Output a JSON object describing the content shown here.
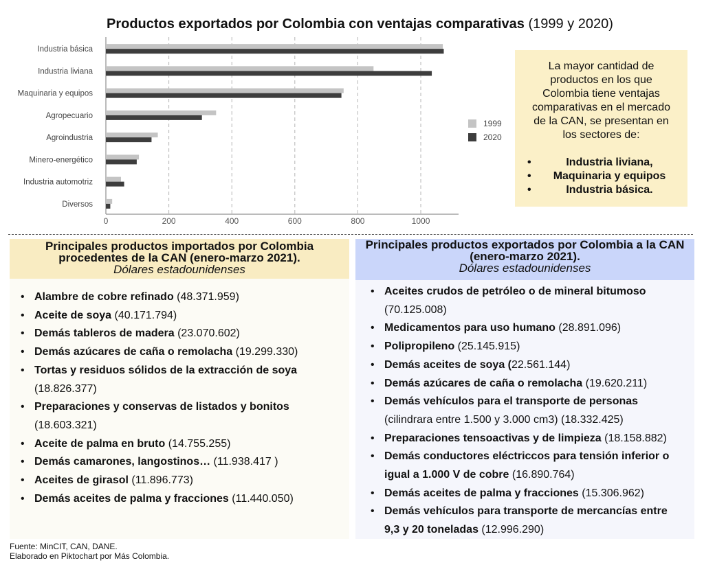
{
  "chart_data": {
    "type": "bar",
    "orientation": "horizontal",
    "title_bold": "Productos exportados por Colombia con ventajas comparativas",
    "title_rest": " (1999 y 2020)",
    "categories": [
      "Industria básica",
      "Industria liviana",
      "Maquinaria y equipos",
      "Agropecuario",
      "Agroindustria",
      "Minero-energético",
      "Industria automotriz",
      "Diversos"
    ],
    "series": [
      {
        "name": "1999",
        "color": "#c4c4c4",
        "values": [
          1070,
          850,
          755,
          350,
          165,
          105,
          48,
          20
        ]
      },
      {
        "name": "2020",
        "color": "#3d3d3d",
        "values": [
          1073,
          1035,
          748,
          305,
          145,
          98,
          58,
          14
        ]
      }
    ],
    "xticks": [
      "0",
      "200",
      "400",
      "600",
      "800",
      "1000"
    ],
    "xlim": [
      0,
      1120
    ],
    "grid": "vertical dashed",
    "legend_position": "right"
  },
  "callout": {
    "intro": "La mayor cantidad de productos en los que Colombia tiene ventajas comparativas en el mercado de la CAN, se presentan en los sectores de:",
    "items": [
      "Industria liviana,",
      "Maquinaria y equipos",
      "Industria básica."
    ]
  },
  "imports": {
    "title": "Principales productos importados por Colombia procedentes de la CAN (enero-marzo 2021).",
    "subtitle": "Dólares estadounidenses",
    "items": [
      {
        "name": "Alambre de cobre refinado",
        "value": " (48.371.959)"
      },
      {
        "name": "Aceite de soya",
        "value": " (40.171.794)"
      },
      {
        "name": "Demás tableros de madera",
        "value": " (23.070.602)"
      },
      {
        "name": "Demás azúcares de caña o remolacha",
        "value": " (19.299.330)"
      },
      {
        "name": "Tortas y residuos sólidos de la extracción de soya",
        "value": " (18.826.377)"
      },
      {
        "name": "Preparaciones y conservas de listados y bonitos",
        "value": " (18.603.321)"
      },
      {
        "name": "Aceite de palma en bruto",
        "value": " (14.755.255)"
      },
      {
        "name": "Demás camarones, langostinos…",
        "value": " (11.938.417 )"
      },
      {
        "name": "Aceites de girasol",
        "value": " (11.896.773)"
      },
      {
        "name": "Demás aceites de palma y fracciones",
        "value": " (11.440.050)"
      }
    ]
  },
  "exports": {
    "title": "Principales productos exportados por Colombia a la CAN (enero-marzo 2021).",
    "subtitle": "Dólares estadounidenses",
    "items": [
      {
        "name": "Aceites crudos de petróleo o de mineral bitumoso",
        "value": " (70.125.008)"
      },
      {
        "name": "Medicamentos para uso humano",
        "value": " (28.891.096)"
      },
      {
        "name": "Polipropileno",
        "value": " (25.145.915)"
      },
      {
        "name": "Demás aceites de soya (",
        "value": "22.561.144)"
      },
      {
        "name": "Demás azúcares de caña o remolacha",
        "value": " (19.620.211)"
      },
      {
        "name": "Demás vehículos para el transporte de personas",
        "value": " (cilindrara entre 1.500 y 3.000 cm3) (18.332.425)"
      },
      {
        "name": "Preparaciones tensoactivas y de limpieza",
        "value": " (18.158.882)"
      },
      {
        "name": "Demás conductores eléctriccos para tensión inferior o igual a 1.000 V de cobre",
        "value": " (16.890.764)"
      },
      {
        "name": "Demás aceites de palma y fracciones",
        "value": " (15.306.962)"
      },
      {
        "name": "Demás vehículos para transporte de mercancías entre 9,3 y 20 toneladas",
        "value": " (12.996.290)"
      }
    ]
  },
  "footer": {
    "source": "Fuente: MinCIT, CAN, DANE.",
    "credit": "Elaborado en Piktochart por Más Colombia."
  }
}
